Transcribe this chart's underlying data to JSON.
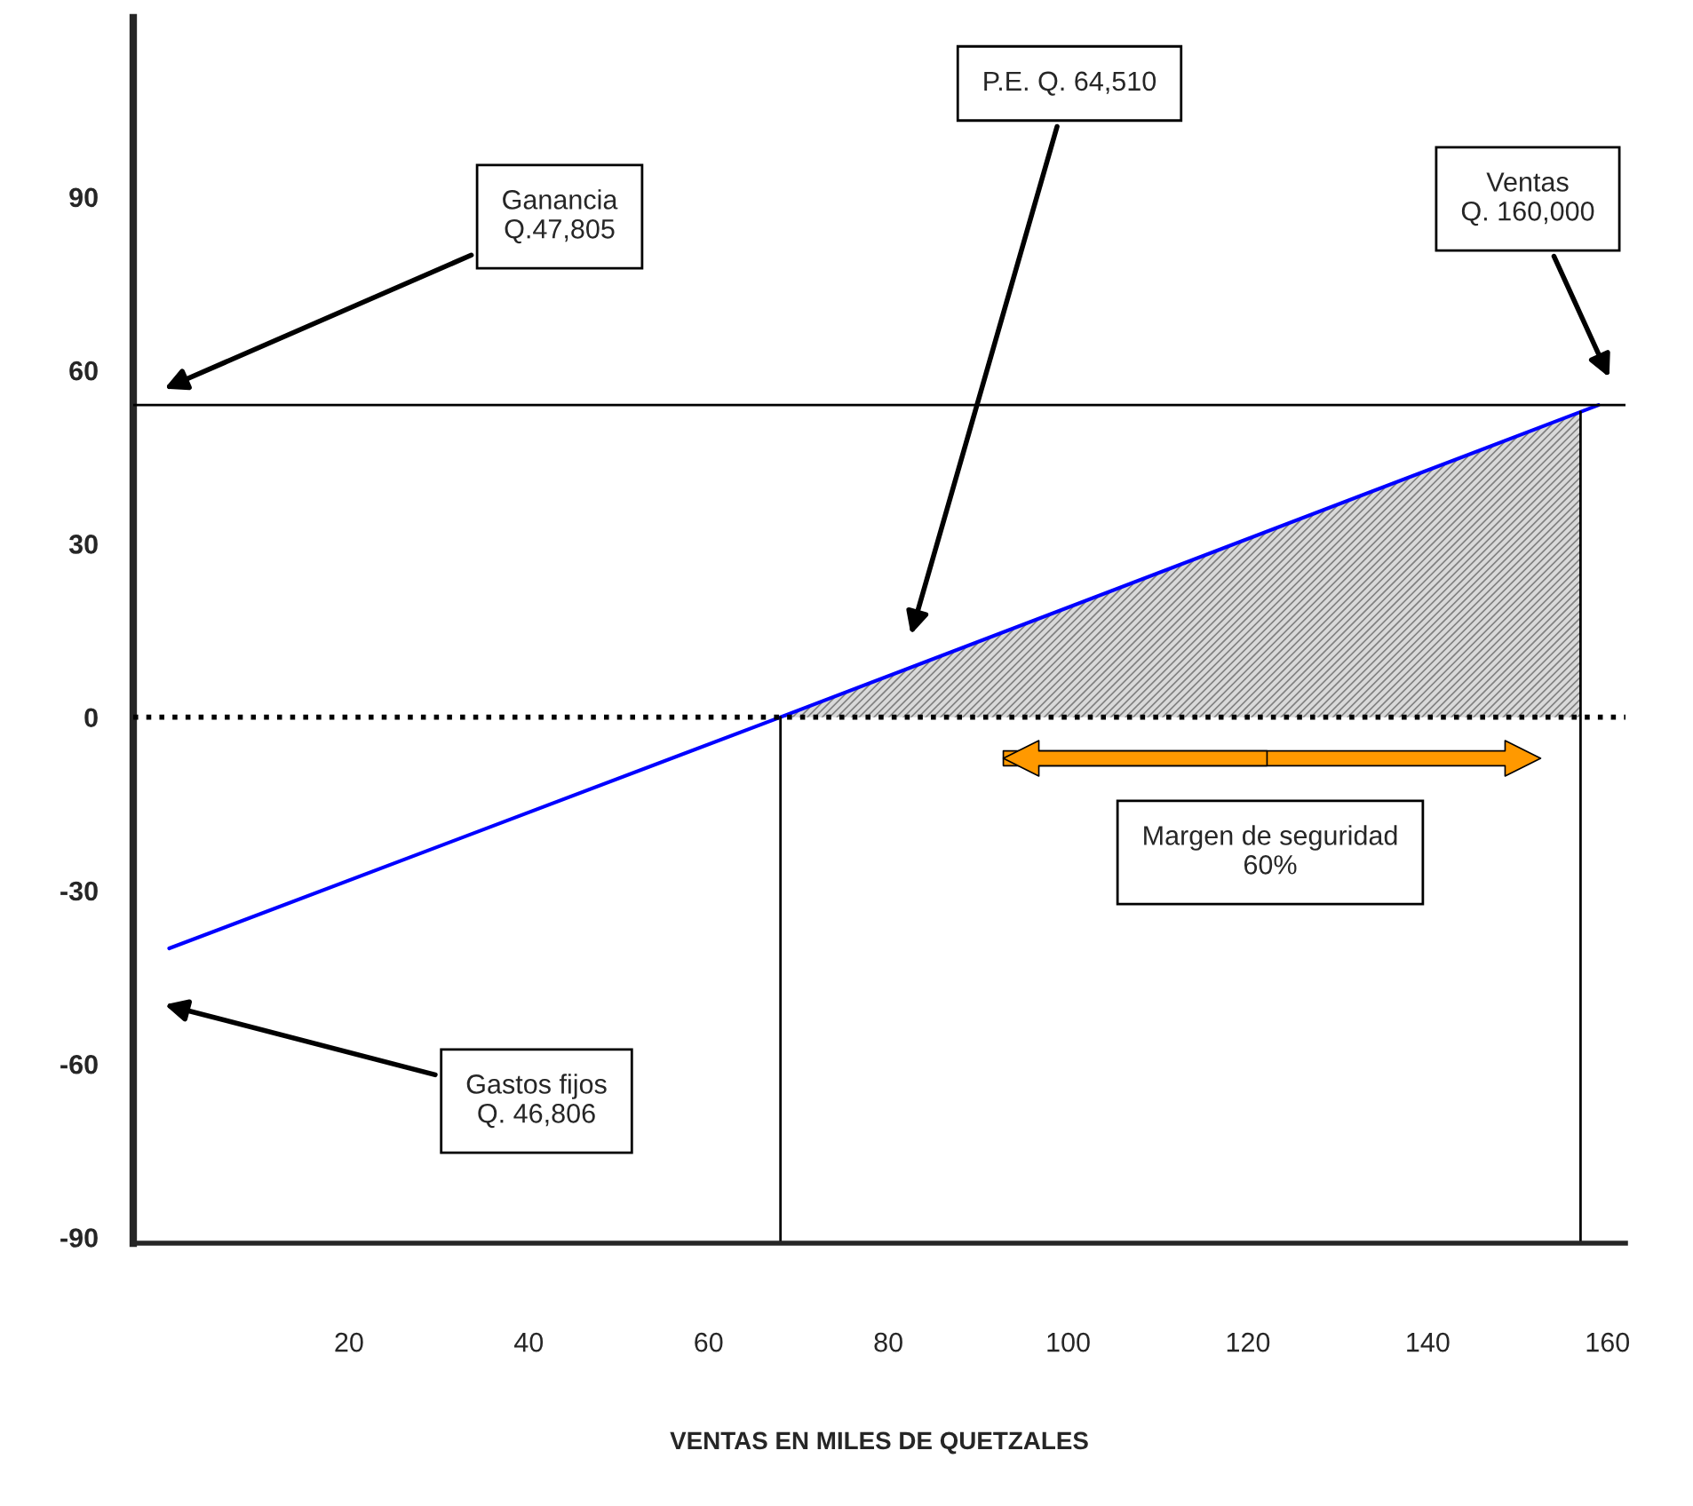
{
  "chart_data": {
    "type": "line",
    "xlabel": "VENTAS EN MILES DE QUETZALES",
    "xlim": [
      -4,
      162
    ],
    "xticks": [
      20,
      40,
      60,
      80,
      100,
      120,
      140,
      160
    ],
    "ylim": [
      -91,
      121
    ],
    "yticks": [
      -90,
      -60,
      -30,
      0,
      30,
      60,
      90
    ],
    "series": [
      {
        "color": "#0000ff",
        "x": [
          0,
          68,
          159
        ],
        "values": [
          -40,
          0,
          54
        ]
      },
      {
        "type": "area",
        "color": "#808080",
        "x": [
          68,
          157
        ],
        "values": [
          0,
          53
        ]
      }
    ],
    "ref_lines": [
      {
        "axis": "y",
        "value": 0,
        "color": "#000000",
        "line_style": "dotted"
      },
      {
        "axis": "y",
        "value": 54,
        "color": "#000000",
        "line_style": "solid"
      },
      {
        "axis": "x",
        "value": 68,
        "color": "#000000",
        "line_style": "solid"
      },
      {
        "axis": "x",
        "value": 157,
        "color": "#000000",
        "line_style": "solid"
      }
    ],
    "annotations": [
      "Ganancia\nQ.47,805",
      "P.E. Q. 64,510",
      "Ventas\nQ. 160,000",
      "Gastos fijos\nQ. 46,806",
      "Margen de seguridad\n60%"
    ],
    "grid": false
  }
}
